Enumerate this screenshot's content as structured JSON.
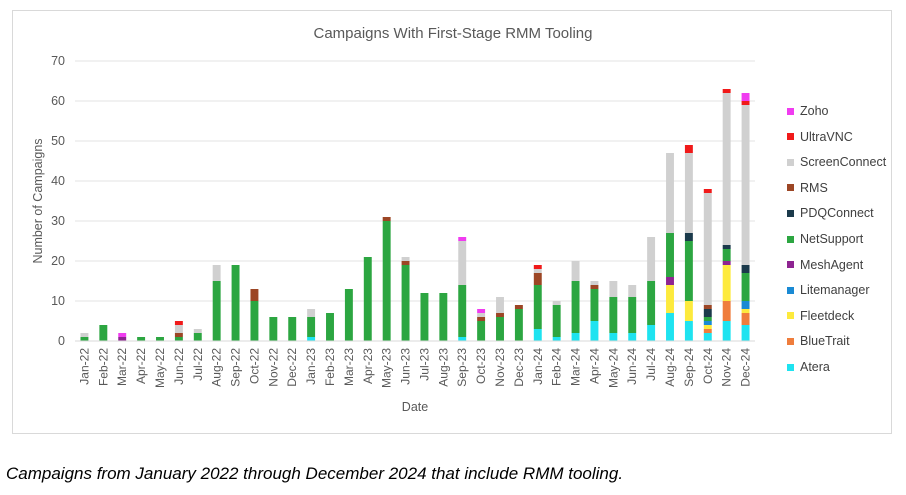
{
  "caption": "Campaigns from January 2022 through December 2024 that include RMM tooling.",
  "chart_data": {
    "type": "bar",
    "stacked": true,
    "title": "Campaigns With First-Stage RMM Tooling",
    "xlabel": "Date",
    "ylabel": "Number of Campaigns",
    "ylim": [
      0,
      70
    ],
    "yticks": [
      0,
      10,
      20,
      30,
      40,
      50,
      60,
      70
    ],
    "grid": "horizontal",
    "legend_position": "right",
    "categories": [
      "Jan-22",
      "Feb-22",
      "Mar-22",
      "Apr-22",
      "May-22",
      "Jun-22",
      "Jul-22",
      "Aug-22",
      "Sep-22",
      "Oct-22",
      "Nov-22",
      "Dec-22",
      "Jan-23",
      "Feb-23",
      "Mar-23",
      "Apr-23",
      "May-23",
      "Jun-23",
      "Jul-23",
      "Aug-23",
      "Sep-23",
      "Oct-23",
      "Nov-23",
      "Dec-23",
      "Jan-24",
      "Feb-24",
      "Mar-24",
      "Apr-24",
      "May-24",
      "Jun-24",
      "Jul-24",
      "Aug-24",
      "Sep-24",
      "Oct-24",
      "Nov-24",
      "Dec-24"
    ],
    "series": [
      {
        "name": "Atera",
        "color": "#1ee3f0",
        "values": [
          0,
          0,
          0,
          0,
          0,
          0,
          0,
          0,
          0,
          0,
          0,
          0,
          1,
          0,
          0,
          0,
          0,
          0,
          0,
          0,
          1,
          0,
          0,
          0,
          3,
          1,
          2,
          5,
          2,
          2,
          4,
          7,
          5,
          2,
          5,
          4
        ]
      },
      {
        "name": "BlueTrait",
        "color": "#ef7d3c",
        "values": [
          0,
          0,
          0,
          0,
          0,
          0,
          0,
          0,
          0,
          0,
          0,
          0,
          0,
          0,
          0,
          0,
          0,
          0,
          0,
          0,
          0,
          0,
          0,
          0,
          0,
          0,
          0,
          0,
          0,
          0,
          0,
          0,
          0,
          1,
          5,
          3
        ]
      },
      {
        "name": "Fleetdeck",
        "color": "#fdea3d",
        "values": [
          0,
          0,
          0,
          0,
          0,
          0,
          0,
          0,
          0,
          0,
          0,
          0,
          0,
          0,
          0,
          0,
          0,
          0,
          0,
          0,
          0,
          0,
          0,
          0,
          0,
          0,
          0,
          0,
          0,
          0,
          0,
          7,
          5,
          1,
          9,
          1
        ]
      },
      {
        "name": "Litemanager",
        "color": "#1a8ad4",
        "values": [
          0,
          0,
          0,
          0,
          0,
          0,
          0,
          0,
          0,
          0,
          0,
          0,
          0,
          0,
          0,
          0,
          0,
          0,
          0,
          0,
          0,
          0,
          0,
          0,
          0,
          0,
          0,
          0,
          0,
          0,
          0,
          0,
          0,
          1,
          0,
          2
        ]
      },
      {
        "name": "MeshAgent",
        "color": "#8e2491",
        "values": [
          0,
          0,
          1,
          0,
          0,
          0,
          0,
          0,
          0,
          0,
          0,
          0,
          0,
          0,
          0,
          0,
          0,
          0,
          0,
          0,
          0,
          0,
          0,
          0,
          0,
          0,
          0,
          0,
          0,
          0,
          0,
          2,
          0,
          0,
          1,
          0
        ]
      },
      {
        "name": "NetSupport",
        "color": "#2ca641",
        "values": [
          1,
          4,
          0,
          1,
          1,
          1,
          2,
          15,
          19,
          10,
          6,
          6,
          5,
          7,
          13,
          21,
          30,
          19,
          12,
          12,
          13,
          5,
          6,
          8,
          11,
          8,
          13,
          8,
          9,
          9,
          11,
          11,
          15,
          1,
          3,
          7
        ]
      },
      {
        "name": "PDQConnect",
        "color": "#1b3a4b",
        "values": [
          0,
          0,
          0,
          0,
          0,
          0,
          0,
          0,
          0,
          0,
          0,
          0,
          0,
          0,
          0,
          0,
          0,
          0,
          0,
          0,
          0,
          0,
          0,
          0,
          0,
          0,
          0,
          0,
          0,
          0,
          0,
          0,
          2,
          2,
          1,
          2
        ]
      },
      {
        "name": "RMS",
        "color": "#9c4625",
        "values": [
          0,
          0,
          0,
          0,
          0,
          1,
          0,
          0,
          0,
          3,
          0,
          0,
          0,
          0,
          0,
          0,
          1,
          1,
          0,
          0,
          0,
          1,
          1,
          1,
          3,
          0,
          0,
          1,
          0,
          0,
          0,
          0,
          0,
          1,
          0,
          0
        ]
      },
      {
        "name": "ScreenConnect",
        "color": "#d0d0d0",
        "values": [
          1,
          0,
          0,
          0,
          0,
          2,
          1,
          4,
          0,
          0,
          0,
          0,
          2,
          0,
          0,
          0,
          0,
          1,
          0,
          0,
          11,
          1,
          4,
          0,
          1,
          1,
          5,
          1,
          4,
          3,
          11,
          20,
          20,
          28,
          38,
          40
        ]
      },
      {
        "name": "UltraVNC",
        "color": "#f01a1a",
        "values": [
          0,
          0,
          0,
          0,
          0,
          1,
          0,
          0,
          0,
          0,
          0,
          0,
          0,
          0,
          0,
          0,
          0,
          0,
          0,
          0,
          0,
          0,
          0,
          0,
          1,
          0,
          0,
          0,
          0,
          0,
          0,
          0,
          2,
          1,
          1,
          1
        ]
      },
      {
        "name": "Zoho",
        "color": "#f03cf0",
        "values": [
          0,
          0,
          1,
          0,
          0,
          0,
          0,
          0,
          0,
          0,
          0,
          0,
          0,
          0,
          0,
          0,
          0,
          0,
          0,
          0,
          1,
          1,
          0,
          0,
          0,
          0,
          0,
          0,
          0,
          0,
          0,
          0,
          0,
          0,
          0,
          2
        ]
      }
    ]
  }
}
